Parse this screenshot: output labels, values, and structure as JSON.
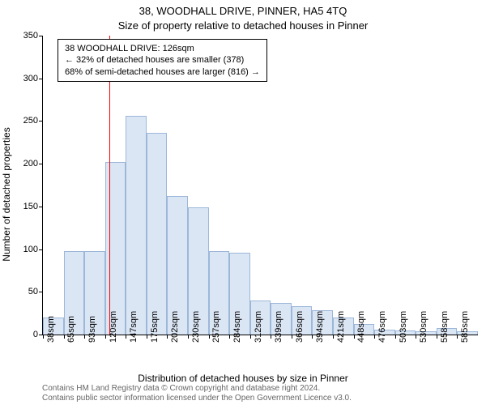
{
  "title": "38, WOODHALL DRIVE, PINNER, HA5 4TQ",
  "subtitle": "Size of property relative to detached houses in Pinner",
  "ylabel": "Number of detached properties",
  "xlabel": "Distribution of detached houses by size in Pinner",
  "attribution_line1": "Contains HM Land Registry data © Crown copyright and database right 2024.",
  "attribution_line2": "Contains public sector information licensed under the Open Government Licence v3.0.",
  "chart": {
    "type": "histogram",
    "background_color": "#ffffff",
    "axis_color": "#000000",
    "bar_fill": "#dbe6f5",
    "bar_border": "#9db7d9",
    "bar_border_width": 1,
    "marker_color": "#ff0000",
    "marker_value_sqm": 126,
    "ylim": [
      0,
      350
    ],
    "ytick_step": 50,
    "xtick_labels": [
      "38sqm",
      "65sqm",
      "93sqm",
      "120sqm",
      "147sqm",
      "175sqm",
      "202sqm",
      "230sqm",
      "257sqm",
      "284sqm",
      "312sqm",
      "339sqm",
      "366sqm",
      "394sqm",
      "421sqm",
      "448sqm",
      "476sqm",
      "503sqm",
      "530sqm",
      "558sqm",
      "585sqm"
    ],
    "values": [
      20,
      98,
      98,
      202,
      256,
      236,
      162,
      149,
      98,
      96,
      40,
      37,
      33,
      28,
      20,
      12,
      6,
      5,
      4,
      8,
      4
    ],
    "info_box": {
      "line1": "38 WOODHALL DRIVE: 126sqm",
      "line2": "← 32% of detached houses are smaller (378)",
      "line3": "68% of semi-detached houses are larger (816) →",
      "border_color": "#000000",
      "background": "#ffffff",
      "fontsize": 11
    },
    "title_fontsize": 13,
    "label_fontsize": 12,
    "tick_fontsize": 11,
    "attribution_fontsize": 10,
    "attribution_color": "#666666"
  }
}
